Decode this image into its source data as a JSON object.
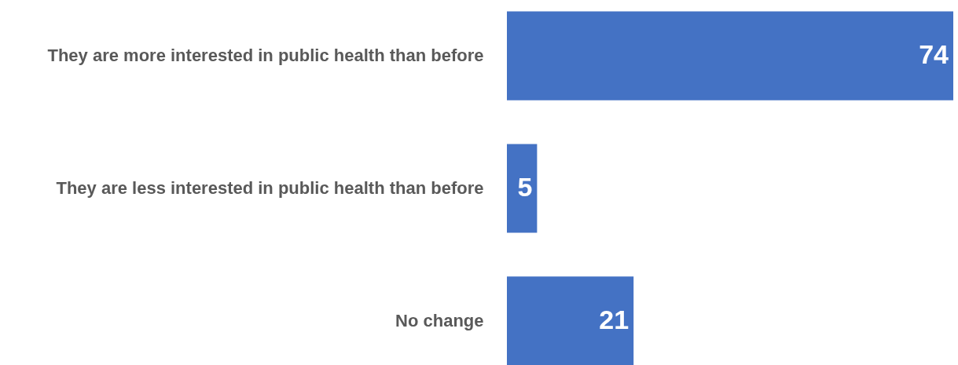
{
  "chart_data": {
    "type": "bar",
    "orientation": "horizontal",
    "categories": [
      "They are more interested in public health than before",
      "They are less interested in public health than before",
      "No change"
    ],
    "values": [
      74,
      5,
      21
    ],
    "color": "#4472c4",
    "data_labels": true,
    "grid": false
  }
}
